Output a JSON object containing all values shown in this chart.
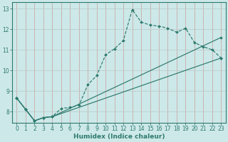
{
  "xlabel": "Humidex (Indice chaleur)",
  "bg_color": "#cde8e8",
  "line_color": "#2d7a6e",
  "xlim": [
    -0.5,
    23.5
  ],
  "ylim": [
    7.45,
    13.3
  ],
  "xticks": [
    0,
    1,
    2,
    3,
    4,
    5,
    6,
    7,
    8,
    9,
    10,
    11,
    12,
    13,
    14,
    15,
    16,
    17,
    18,
    19,
    20,
    21,
    22,
    23
  ],
  "yticks": [
    8,
    9,
    10,
    11,
    12,
    13
  ],
  "series1": [
    [
      0,
      8.65
    ],
    [
      1,
      8.1
    ],
    [
      2,
      7.55
    ],
    [
      3,
      7.7
    ],
    [
      4,
      7.75
    ],
    [
      5,
      8.15
    ],
    [
      6,
      8.2
    ],
    [
      7,
      8.3
    ],
    [
      8,
      9.3
    ],
    [
      9,
      9.75
    ],
    [
      10,
      10.75
    ],
    [
      11,
      11.05
    ],
    [
      12,
      11.45
    ],
    [
      13,
      12.95
    ],
    [
      14,
      12.35
    ],
    [
      15,
      12.2
    ],
    [
      16,
      12.15
    ],
    [
      17,
      12.05
    ],
    [
      18,
      11.85
    ],
    [
      19,
      12.05
    ],
    [
      20,
      11.35
    ],
    [
      21,
      11.15
    ],
    [
      22,
      11.0
    ],
    [
      23,
      10.6
    ]
  ],
  "series2": [
    [
      0,
      8.65
    ],
    [
      1,
      8.1
    ],
    [
      2,
      7.55
    ],
    [
      3,
      7.7
    ],
    [
      4,
      7.75
    ],
    [
      23,
      11.6
    ]
  ],
  "series3": [
    [
      0,
      8.65
    ],
    [
      1,
      8.1
    ],
    [
      2,
      7.55
    ],
    [
      3,
      7.7
    ],
    [
      4,
      7.75
    ],
    [
      23,
      10.6
    ]
  ],
  "vgrid_color": "#c8a0a0",
  "hgrid_color": "#b8c8c8"
}
